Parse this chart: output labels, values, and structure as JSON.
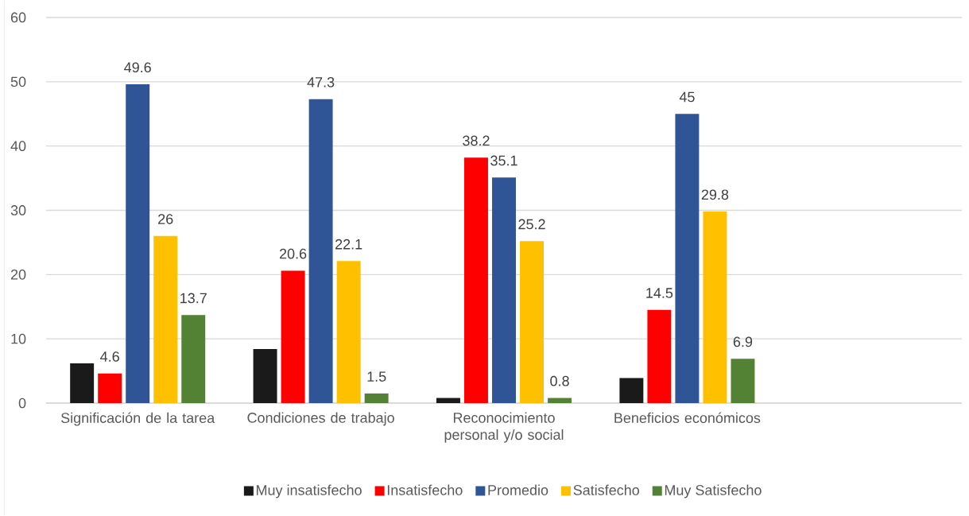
{
  "chart_data": {
    "type": "bar",
    "categories": [
      "Significación de la tarea",
      "Condiciones de trabajo",
      "Reconocimiento personal y/o social",
      "Beneficios económicos",
      null
    ],
    "series": [
      {
        "name": "Muy insatisfecho",
        "color": "#1a1a1a",
        "values": [
          6.2,
          8.4,
          0.8,
          3.9,
          null
        ]
      },
      {
        "name": "Insatisfecho",
        "color": "#ff0000",
        "values": [
          4.6,
          20.6,
          38.2,
          14.5,
          null
        ],
        "value_labels": [
          "4.6",
          "20.6",
          "38.2",
          "14.5",
          null
        ]
      },
      {
        "name": "Promedio",
        "color": "#2f5597",
        "values": [
          49.6,
          47.3,
          35.1,
          45,
          null
        ],
        "value_labels": [
          "49.6",
          "47.3",
          "35.1",
          "45",
          null
        ]
      },
      {
        "name": "Satisfecho",
        "color": "#ffc000",
        "values": [
          26,
          22.1,
          25.2,
          29.8,
          null
        ],
        "value_labels": [
          "26",
          "22.1",
          "25.2",
          "29.8",
          null
        ]
      },
      {
        "name": "Muy Satisfecho",
        "color": "#548235",
        "values": [
          13.7,
          1.5,
          0.8,
          6.9,
          null
        ],
        "value_labels": [
          "13.7",
          "1.5",
          "0.8",
          "6.9",
          null
        ]
      }
    ],
    "ylim": [
      0,
      60
    ],
    "yticks": [
      0,
      10,
      20,
      30,
      40,
      50,
      60
    ],
    "grid": "y",
    "legend": "bottom"
  }
}
